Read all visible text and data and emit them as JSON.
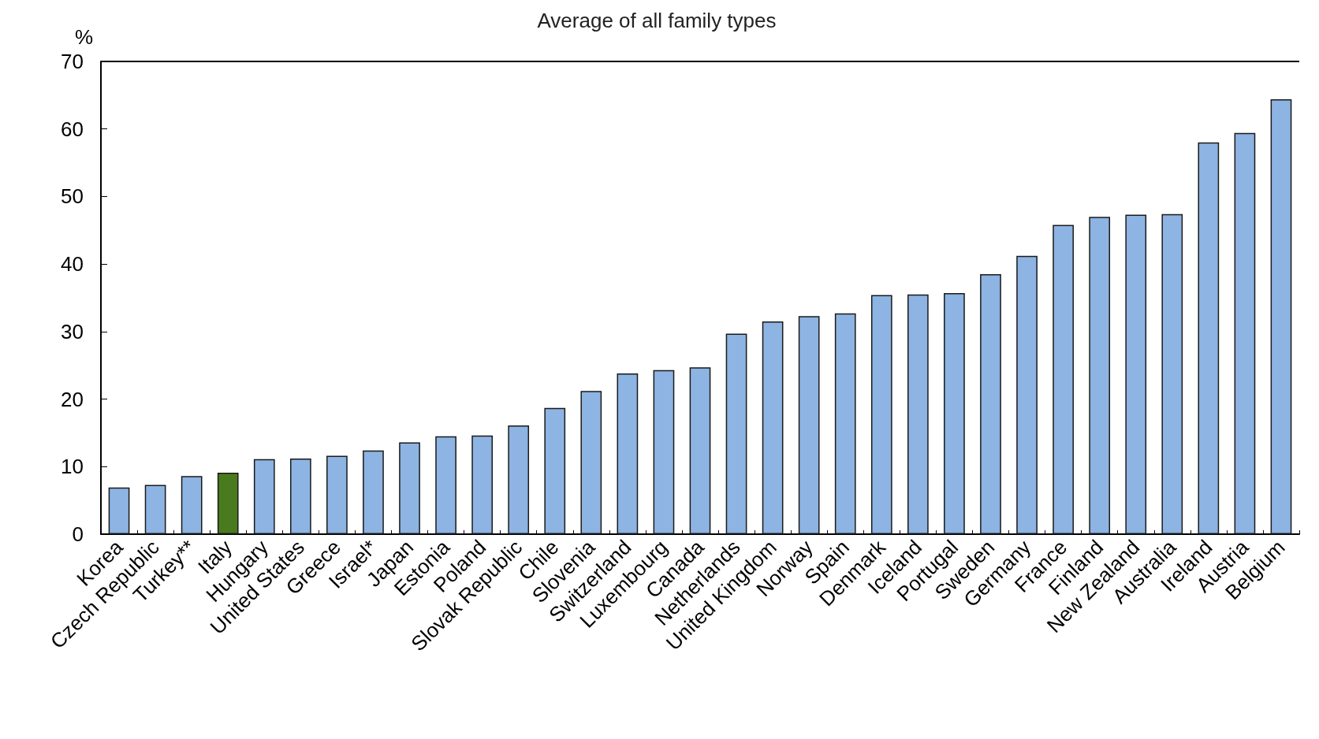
{
  "chart_data": {
    "type": "bar",
    "title": "Average of all family types",
    "ylabel": "%",
    "categories": [
      "Korea",
      "Czech Republic",
      "Turkey**",
      "Italy",
      "Hungary",
      "United States",
      "Greece",
      "Israel*",
      "Japan",
      "Estonia",
      "Poland",
      "Slovak Republic",
      "Chile",
      "Slovenia",
      "Switzerland",
      "Luxembourg",
      "Canada",
      "Netherlands",
      "United Kingdom",
      "Norway",
      "Spain",
      "Denmark",
      "Iceland",
      "Portugal",
      "Sweden",
      "Germany",
      "France",
      "Finland",
      "New Zealand",
      "Australia",
      "Ireland",
      "Austria",
      "Belgium"
    ],
    "values": [
      6.9,
      7.3,
      8.6,
      9.1,
      11.1,
      11.2,
      11.6,
      12.4,
      13.6,
      14.5,
      14.6,
      16.1,
      18.7,
      21.2,
      23.8,
      24.3,
      24.7,
      29.7,
      31.5,
      32.3,
      32.7,
      35.4,
      35.5,
      35.7,
      38.5,
      41.2,
      45.8,
      47.0,
      47.3,
      47.4,
      58.0,
      59.4,
      64.4
    ],
    "colors": [
      "#8db4e2",
      "#8db4e2",
      "#8db4e2",
      "#4a7a1e",
      "#8db4e2",
      "#8db4e2",
      "#8db4e2",
      "#8db4e2",
      "#8db4e2",
      "#8db4e2",
      "#8db4e2",
      "#8db4e2",
      "#8db4e2",
      "#8db4e2",
      "#8db4e2",
      "#8db4e2",
      "#8db4e2",
      "#8db4e2",
      "#8db4e2",
      "#8db4e2",
      "#8db4e2",
      "#8db4e2",
      "#8db4e2",
      "#8db4e2",
      "#8db4e2",
      "#8db4e2",
      "#8db4e2",
      "#8db4e2",
      "#8db4e2",
      "#8db4e2",
      "#8db4e2",
      "#8db4e2",
      "#8db4e2"
    ],
    "ylim": [
      0,
      70
    ],
    "yticks": [
      0,
      10,
      20,
      30,
      40,
      50,
      60,
      70
    ],
    "grid": false
  }
}
